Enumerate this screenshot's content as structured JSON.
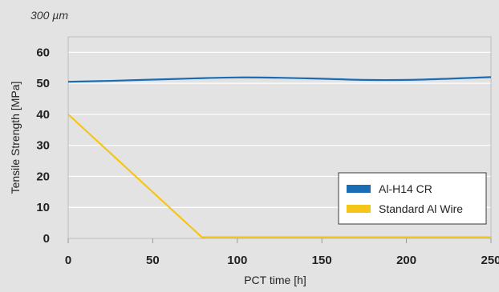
{
  "chart_data": {
    "type": "line",
    "annotation": "300 µm",
    "xlabel": "PCT time [h]",
    "ylabel": "Tensile Strength [MPa]",
    "xlim": [
      0,
      250
    ],
    "ylim": [
      0,
      65
    ],
    "x_ticks": [
      0,
      50,
      100,
      150,
      200,
      250
    ],
    "y_ticks": [
      0,
      10,
      20,
      30,
      40,
      50,
      60
    ],
    "grid": true,
    "legend_position": "bottom-right",
    "series": [
      {
        "name": "Al-H14 CR",
        "color": "#1a6db5",
        "x": [
          0,
          25,
          50,
          75,
          100,
          125,
          150,
          175,
          200,
          225,
          250
        ],
        "y": [
          50.5,
          50.8,
          51.2,
          51.6,
          51.9,
          51.8,
          51.5,
          51.1,
          51.1,
          51.5,
          52.0
        ]
      },
      {
        "name": "Standard Al Wire",
        "color": "#f5c518",
        "x": [
          0,
          79,
          250
        ],
        "y": [
          40,
          0.4,
          0.4
        ]
      }
    ]
  }
}
